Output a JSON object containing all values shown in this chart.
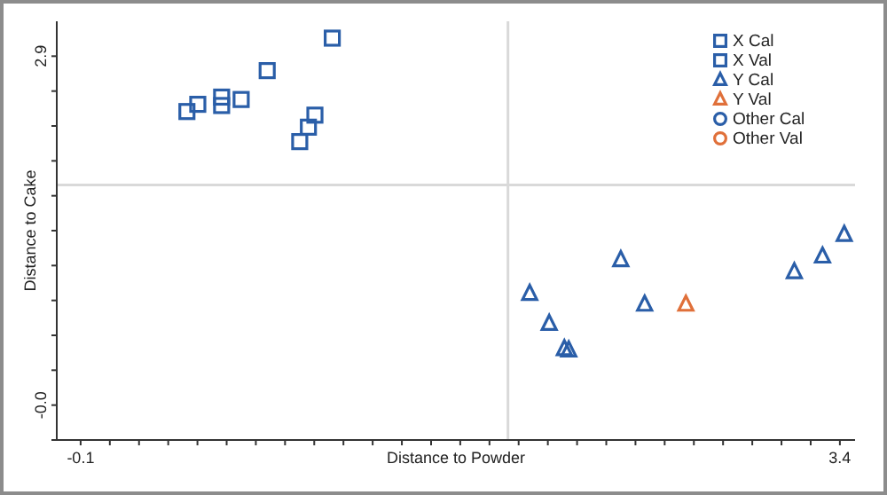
{
  "chart_data": {
    "type": "scatter",
    "xlabel": "Distance to Powder",
    "ylabel": "Distance to Cake",
    "xlim": [
      -0.21,
      3.47
    ],
    "ylim": [
      -0.29,
      3.19
    ],
    "xticks": [
      {
        "value": -0.1,
        "label": "-0.1"
      },
      {
        "value": 0.0346,
        "label": null
      },
      {
        "value": 0.1692,
        "label": null
      },
      {
        "value": 0.3038,
        "label": null
      },
      {
        "value": 0.4385,
        "label": null
      },
      {
        "value": 0.5731,
        "label": null
      },
      {
        "value": 0.7077,
        "label": null
      },
      {
        "value": 0.8423,
        "label": null
      },
      {
        "value": 0.9769,
        "label": null
      },
      {
        "value": 1.1115,
        "label": null
      },
      {
        "value": 1.2462,
        "label": null
      },
      {
        "value": 1.3808,
        "label": null
      },
      {
        "value": 1.5154,
        "label": null
      },
      {
        "value": 1.65,
        "label": null
      },
      {
        "value": 1.7846,
        "label": null
      },
      {
        "value": 1.9192,
        "label": null
      },
      {
        "value": 2.0538,
        "label": null
      },
      {
        "value": 2.1885,
        "label": null
      },
      {
        "value": 2.3231,
        "label": null
      },
      {
        "value": 2.4577,
        "label": null
      },
      {
        "value": 2.5923,
        "label": null
      },
      {
        "value": 2.7269,
        "label": null
      },
      {
        "value": 2.8615,
        "label": null
      },
      {
        "value": 2.9962,
        "label": null
      },
      {
        "value": 3.1308,
        "label": null
      },
      {
        "value": 3.2654,
        "label": null
      },
      {
        "value": 3.4,
        "label": "3.4"
      }
    ],
    "yticks": [
      {
        "value": -0.29,
        "label": null
      },
      {
        "value": 0,
        "label": "-0.0"
      },
      {
        "value": 0.29,
        "label": null
      },
      {
        "value": 0.58,
        "label": null
      },
      {
        "value": 0.87,
        "label": null
      },
      {
        "value": 1.16,
        "label": null
      },
      {
        "value": 1.45,
        "label": null
      },
      {
        "value": 1.74,
        "label": null
      },
      {
        "value": 2.03,
        "label": null
      },
      {
        "value": 2.32,
        "label": null
      },
      {
        "value": 2.61,
        "label": null
      },
      {
        "value": 2.9,
        "label": "2.9"
      }
    ],
    "grid": false,
    "legend": "top right",
    "ref_lines": [
      {
        "axis": "x",
        "value": 1.87,
        "color": "#d9d9d9"
      },
      {
        "axis": "y",
        "value": 1.83,
        "color": "#d9d9d9"
      }
    ],
    "series": [
      {
        "name": "X Cal",
        "color": "#2a5ea8",
        "marker": "square",
        "x": [
          0.39,
          0.44,
          0.55,
          0.55,
          0.64,
          0.76,
          1.06,
          0.91,
          0.95,
          0.98
        ],
        "values": [
          2.44,
          2.5,
          2.56,
          2.49,
          2.54,
          2.78,
          3.05,
          2.19,
          2.31,
          2.41
        ]
      },
      {
        "name": "X Val",
        "color": "#2a5ea8",
        "marker": "square"
      },
      {
        "name": "Y Cal",
        "color": "#2a5ea8",
        "marker": "triangle",
        "x": [
          1.97,
          2.06,
          2.13,
          2.15,
          2.39,
          2.5,
          3.19,
          3.32,
          3.42
        ],
        "values": [
          0.93,
          0.68,
          0.47,
          0.46,
          1.21,
          0.84,
          1.11,
          1.24,
          1.42
        ]
      },
      {
        "name": "Y Val",
        "color": "#e0703a",
        "marker": "triangle",
        "x": [
          2.69
        ],
        "values": [
          0.84
        ]
      },
      {
        "name": "Other Cal",
        "color": "#2a5ea8",
        "marker": "circle"
      },
      {
        "name": "Other Val",
        "color": "#e0703a",
        "marker": "circle"
      }
    ]
  }
}
